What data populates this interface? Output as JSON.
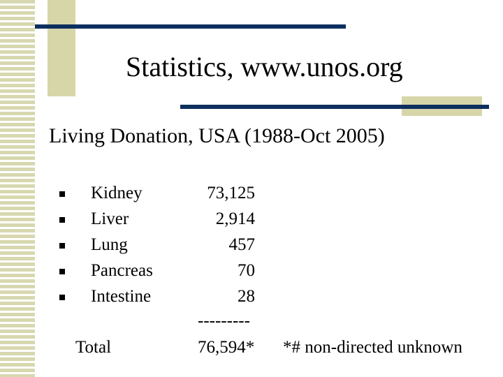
{
  "header": {
    "title": "Statistics, www.unos.org"
  },
  "subtitle": "Living Donation, USA (1988-Oct 2005)",
  "items": [
    {
      "name": "Kidney",
      "value": "73,125"
    },
    {
      "name": "Liver",
      "value": "2,914"
    },
    {
      "name": "Lung",
      "value": "457"
    },
    {
      "name": "Pancreas",
      "value": "70"
    },
    {
      "name": "Intestine",
      "value": "28"
    }
  ],
  "separator": "---------",
  "total": {
    "label": "Total",
    "value": "76,594*",
    "note": "*# non-directed unknown"
  }
}
